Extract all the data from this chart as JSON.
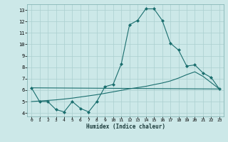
{
  "xlabel": "Humidex (Indice chaleur)",
  "bg_color": "#cce8e8",
  "grid_color": "#aacfcf",
  "line_color": "#1a6e6e",
  "xlim": [
    -0.5,
    23.5
  ],
  "ylim": [
    3.7,
    13.5
  ],
  "xticks": [
    0,
    1,
    2,
    3,
    4,
    5,
    6,
    7,
    8,
    9,
    10,
    11,
    12,
    13,
    14,
    15,
    16,
    17,
    18,
    19,
    20,
    21,
    22,
    23
  ],
  "yticks": [
    4,
    5,
    6,
    7,
    8,
    9,
    10,
    11,
    12,
    13
  ],
  "line1_x": [
    0,
    1,
    2,
    3,
    4,
    5,
    6,
    7,
    8,
    9,
    10,
    11,
    12,
    13,
    14,
    15,
    16,
    17,
    18,
    19,
    20,
    21,
    22,
    23
  ],
  "line1_y": [
    6.2,
    5.0,
    5.0,
    4.3,
    4.1,
    5.0,
    4.4,
    4.1,
    5.0,
    6.3,
    6.5,
    8.3,
    11.7,
    12.1,
    13.1,
    13.1,
    12.1,
    10.1,
    9.5,
    8.1,
    8.2,
    7.5,
    7.1,
    6.1
  ],
  "line2_x": [
    0,
    23
  ],
  "line2_y": [
    6.2,
    6.1
  ],
  "line3_x": [
    0,
    1,
    2,
    3,
    4,
    5,
    6,
    7,
    8,
    9,
    10,
    11,
    12,
    13,
    14,
    15,
    16,
    17,
    18,
    19,
    20,
    21,
    22,
    23
  ],
  "line3_y": [
    5.0,
    5.05,
    5.1,
    5.15,
    5.22,
    5.3,
    5.4,
    5.5,
    5.6,
    5.72,
    5.85,
    5.98,
    6.12,
    6.22,
    6.33,
    6.48,
    6.62,
    6.8,
    7.05,
    7.35,
    7.6,
    7.2,
    6.65,
    6.1
  ]
}
